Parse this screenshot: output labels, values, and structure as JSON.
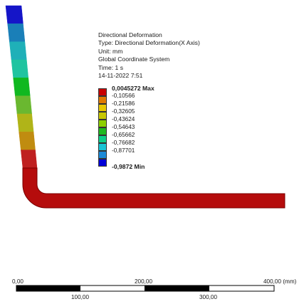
{
  "result_info": {
    "title": "Directional Deformation",
    "type": "Type: Directional Deformation(X Axis)",
    "unit": "Unit: mm",
    "coordinate_system": "Global Coordinate System",
    "time": "Time: 1 s",
    "date": "14-11-2022 7:51"
  },
  "legend": {
    "max_label": "0,0045272 Max",
    "min_label": "-0,9872 Min",
    "values": [
      "-0,10566",
      "-0,21586",
      "-0,32605",
      "-0,43624",
      "-0,54643",
      "-0,65662",
      "-0,76682",
      "-0,87701"
    ],
    "colors": [
      "#c80000",
      "#e07a00",
      "#e8c800",
      "#c8c800",
      "#8ecf00",
      "#1fb81f",
      "#0ccf88",
      "#18c4d4",
      "#1c8ad6",
      "#0000d8"
    ]
  },
  "model": {
    "pipe_segment_colors": [
      "#1515c8",
      "#1a7fb8",
      "#1fb0b8",
      "#20c4a0",
      "#10b820",
      "#6ab830",
      "#b0b418",
      "#c08c10",
      "#bf2020"
    ],
    "horizontal_color": "#b50c0c",
    "edge_color": "#7a0000"
  },
  "scale_bar": {
    "top_labels": [
      "0,00",
      "200,00",
      "400,00 (mm)"
    ],
    "bottom_labels": [
      "100,00",
      "300,00"
    ]
  }
}
